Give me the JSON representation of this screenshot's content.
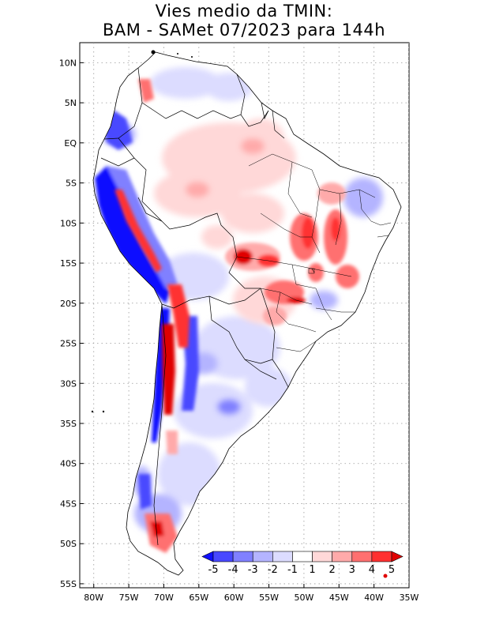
{
  "title": {
    "line1": "Vies medio da TMIN:",
    "line2": "BAM - SAMet 07/2023  para 144h"
  },
  "map": {
    "region": "South America",
    "lon_range": [
      -82,
      -35
    ],
    "lat_range": [
      -55.5,
      12.5
    ],
    "lat_ticks": [
      {
        "value": 10,
        "label": "10N"
      },
      {
        "value": 5,
        "label": "5N"
      },
      {
        "value": 0,
        "label": "EQ"
      },
      {
        "value": -5,
        "label": "5S"
      },
      {
        "value": -10,
        "label": "10S"
      },
      {
        "value": -15,
        "label": "15S"
      },
      {
        "value": -20,
        "label": "20S"
      },
      {
        "value": -25,
        "label": "25S"
      },
      {
        "value": -30,
        "label": "30S"
      },
      {
        "value": -35,
        "label": "35S"
      },
      {
        "value": -40,
        "label": "40S"
      },
      {
        "value": -45,
        "label": "45S"
      },
      {
        "value": -50,
        "label": "50S"
      },
      {
        "value": -55,
        "label": "55S"
      }
    ],
    "lon_ticks": [
      {
        "value": -80,
        "label": "80W"
      },
      {
        "value": -75,
        "label": "75W"
      },
      {
        "value": -70,
        "label": "70W"
      },
      {
        "value": -65,
        "label": "65W"
      },
      {
        "value": -60,
        "label": "60W"
      },
      {
        "value": -55,
        "label": "55W"
      },
      {
        "value": -50,
        "label": "50W"
      },
      {
        "value": -45,
        "label": "45W"
      },
      {
        "value": -40,
        "label": "40W"
      },
      {
        "value": -35,
        "label": "35W"
      }
    ]
  },
  "colorbar": {
    "labels": [
      "-5",
      "-4",
      "-3",
      "-2",
      "-1",
      "1",
      "2",
      "3",
      "4",
      "5"
    ],
    "colors": [
      "#1010ff",
      "#4848ff",
      "#8080ff",
      "#b4b4ff",
      "#dcdcff",
      "#ffffff",
      "#ffd8d8",
      "#ffaaaa",
      "#ff7070",
      "#ff3030",
      "#e00000"
    ]
  }
}
